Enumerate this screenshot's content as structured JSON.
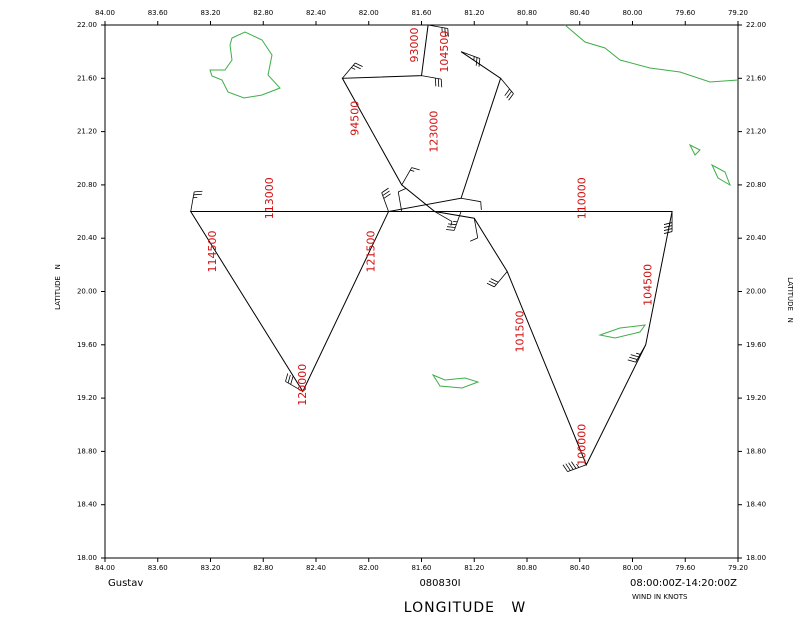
{
  "chart_data": {
    "type": "wind-track",
    "storm": "Gustav",
    "date": "080830I",
    "time_range": "08:00:00Z-14:20:00Z",
    "units_note": "WIND IN KNOTS",
    "xlabel": "LONGITUDE   W",
    "ylabel": "LATITUDE   N",
    "xlim": [
      84.0,
      79.2
    ],
    "ylim": [
      18.0,
      22.0
    ],
    "xticks": [
      {
        "value": 84.0,
        "label": "84.00"
      },
      {
        "value": 83.6,
        "label": "83.60"
      },
      {
        "value": 83.2,
        "label": "83.20"
      },
      {
        "value": 82.8,
        "label": "82.80"
      },
      {
        "value": 82.4,
        "label": "82.40"
      },
      {
        "value": 82.0,
        "label": "82.00"
      },
      {
        "value": 81.6,
        "label": "81.60"
      },
      {
        "value": 81.2,
        "label": "81.20"
      },
      {
        "value": 80.8,
        "label": "80.80"
      },
      {
        "value": 80.4,
        "label": "80.40"
      },
      {
        "value": 80.0,
        "label": "80.00"
      },
      {
        "value": 79.6,
        "label": "79.60"
      },
      {
        "value": 79.2,
        "label": "79.20"
      }
    ],
    "yticks": [
      {
        "value": 18.0,
        "label": "18.00"
      },
      {
        "value": 18.4,
        "label": "18.40"
      },
      {
        "value": 18.8,
        "label": "18.80"
      },
      {
        "value": 19.2,
        "label": "19.20"
      },
      {
        "value": 19.6,
        "label": "19.60"
      },
      {
        "value": 20.0,
        "label": "20.00"
      },
      {
        "value": 20.4,
        "label": "20.40"
      },
      {
        "value": 20.8,
        "label": "20.80"
      },
      {
        "value": 21.2,
        "label": "21.20"
      },
      {
        "value": 21.6,
        "label": "21.60"
      },
      {
        "value": 22.0,
        "label": "22.00"
      }
    ],
    "x": [
      81.55,
      81.6,
      82.2,
      81.75,
      81.5,
      81.2,
      80.95,
      80.35,
      79.9,
      79.7,
      81.3,
      81.75,
      83.35,
      82.5,
      81.85,
      81.3,
      81.0,
      81.3
    ],
    "series": [
      {
        "name": "Flight track",
        "color": "#000000",
        "values": [
          22.0,
          21.62,
          21.6,
          20.8,
          20.6,
          20.55,
          20.15,
          18.7,
          19.6,
          20.6,
          20.6,
          20.6,
          20.6,
          19.25,
          20.6,
          20.7,
          21.6,
          21.8
        ]
      }
    ],
    "wind_speed": [
      25,
      30,
      25,
      15,
      5,
      10,
      30,
      45,
      35,
      40,
      35,
      10,
      25,
      30,
      30,
      10,
      30,
      25
    ],
    "wind_direction": [
      100,
      100,
      40,
      30,
      120,
      170,
      220,
      250,
      210,
      180,
      200,
      350,
      10,
      300,
      340,
      100,
      140,
      110
    ],
    "time_labels": [
      {
        "text": "93000",
        "lon": 81.65,
        "lat": 21.85
      },
      {
        "text": "104500",
        "lon": 81.42,
        "lat": 21.8
      },
      {
        "text": "94500",
        "lon": 82.1,
        "lat": 21.3
      },
      {
        "text": "123000",
        "lon": 81.5,
        "lat": 21.2
      },
      {
        "text": "113000",
        "lon": 82.75,
        "lat": 20.7
      },
      {
        "text": "110000",
        "lon": 80.38,
        "lat": 20.7
      },
      {
        "text": "114500",
        "lon": 83.18,
        "lat": 20.3
      },
      {
        "text": "121500",
        "lon": 81.98,
        "lat": 20.3
      },
      {
        "text": "104500",
        "lon": 79.88,
        "lat": 20.05
      },
      {
        "text": "101500",
        "lon": 80.85,
        "lat": 19.7
      },
      {
        "text": "120000",
        "lon": 82.5,
        "lat": 19.3
      },
      {
        "text": "100000",
        "lon": 80.38,
        "lat": 18.85
      }
    ]
  }
}
